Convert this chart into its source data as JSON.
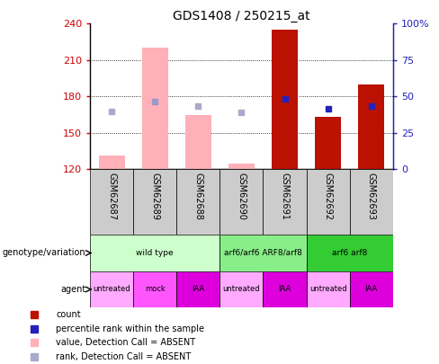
{
  "title": "GDS1408 / 250215_at",
  "samples": [
    "GSM62687",
    "GSM62689",
    "GSM62688",
    "GSM62690",
    "GSM62691",
    "GSM62692",
    "GSM62693"
  ],
  "ylim_left": [
    120,
    240
  ],
  "ylim_right": [
    0,
    100
  ],
  "yticks_left": [
    120,
    150,
    180,
    210,
    240
  ],
  "yticks_right": [
    0,
    25,
    50,
    75,
    100
  ],
  "bar_values": [
    131,
    220,
    165,
    125,
    235,
    163,
    190
  ],
  "bar_colors": [
    "#FFB0B8",
    "#FFB0B8",
    "#FFB0B8",
    "#FFB0B8",
    "#BB1100",
    "#BB1100",
    "#BB1100"
  ],
  "rank_values": [
    null,
    176,
    null,
    null,
    178,
    170,
    172
  ],
  "rank_colors": [
    "#9999CC",
    "#9999CC",
    "#9999CC",
    "#9999CC",
    "#2222BB",
    "#2222BB",
    "#2222BB"
  ],
  "rank_absent_values": [
    168,
    null,
    172,
    167,
    null,
    null,
    null
  ],
  "rank_absent_color": "#AAAACC",
  "baseline": 120,
  "genotype_groups": [
    {
      "label": "wild type",
      "start": 0,
      "end": 3,
      "color": "#CCFFCC"
    },
    {
      "label": "arf6/arf6 ARF8/arf8",
      "start": 3,
      "end": 5,
      "color": "#88EE88"
    },
    {
      "label": "arf6 arf8",
      "start": 5,
      "end": 7,
      "color": "#33CC33"
    }
  ],
  "agent_groups": [
    {
      "label": "untreated",
      "start": 0,
      "end": 1,
      "color": "#FFAAFF"
    },
    {
      "label": "mock",
      "start": 1,
      "end": 2,
      "color": "#FF55FF"
    },
    {
      "label": "IAA",
      "start": 2,
      "end": 3,
      "color": "#DD00DD"
    },
    {
      "label": "untreated",
      "start": 3,
      "end": 4,
      "color": "#FFAAFF"
    },
    {
      "label": "IAA",
      "start": 4,
      "end": 5,
      "color": "#DD00DD"
    },
    {
      "label": "untreated",
      "start": 5,
      "end": 6,
      "color": "#FFAAFF"
    },
    {
      "label": "IAA",
      "start": 6,
      "end": 7,
      "color": "#DD00DD"
    }
  ],
  "legend_items": [
    {
      "label": "count",
      "color": "#BB1100"
    },
    {
      "label": "percentile rank within the sample",
      "color": "#2222BB"
    },
    {
      "label": "value, Detection Call = ABSENT",
      "color": "#FFB0B8"
    },
    {
      "label": "rank, Detection Call = ABSENT",
      "color": "#AAAACC"
    }
  ],
  "left_axis_color": "#CC0000",
  "right_axis_color": "#2222BB",
  "grid_lines": [
    150,
    180,
    210
  ],
  "bar_width": 0.6,
  "sample_bg_color": "#CCCCCC",
  "geno_label": "genotype/variation",
  "agent_label": "agent"
}
